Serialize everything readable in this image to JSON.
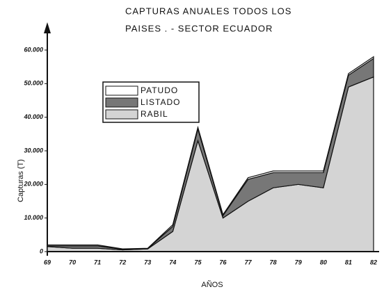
{
  "chart_data": {
    "type": "stacked_area",
    "title_lines": [
      "CAPTURAS ANUALES TODOS LOS",
      "PAISES . - SECTOR ECUADOR"
    ],
    "y_label": "Capturas (T)",
    "x_label": "AÑOS",
    "categories": [
      "69",
      "70",
      "71",
      "72",
      "73",
      "74",
      "75",
      "76",
      "77",
      "78",
      "79",
      "80",
      "81",
      "82"
    ],
    "series": [
      {
        "name": "PATUDO",
        "color": "#ffffff",
        "values": [
          300,
          300,
          300,
          100,
          100,
          500,
          500,
          300,
          500,
          500,
          500,
          500,
          500,
          500
        ]
      },
      {
        "name": "LISTADO",
        "color": "#777777",
        "values": [
          200,
          700,
          700,
          200,
          100,
          1500,
          3500,
          700,
          6500,
          4500,
          3500,
          4500,
          3500,
          5500
        ]
      },
      {
        "name": "RABIL",
        "color": "#d4d4d4",
        "values": [
          1500,
          1000,
          1000,
          500,
          800,
          6000,
          33000,
          10000,
          15000,
          19000,
          20000,
          19000,
          49000,
          52000
        ]
      }
    ],
    "ylim": [
      0,
      60000
    ],
    "yticks": [
      0,
      {
        "value": 10000,
        "label": "10.000"
      },
      {
        "value": 20000,
        "label": "20.000"
      },
      {
        "value": 30000,
        "label": "30.000"
      },
      {
        "value": 40000,
        "label": "40.000"
      },
      {
        "value": 50000,
        "label": "50.000"
      },
      {
        "value": 60000,
        "label": "60.000"
      }
    ]
  }
}
